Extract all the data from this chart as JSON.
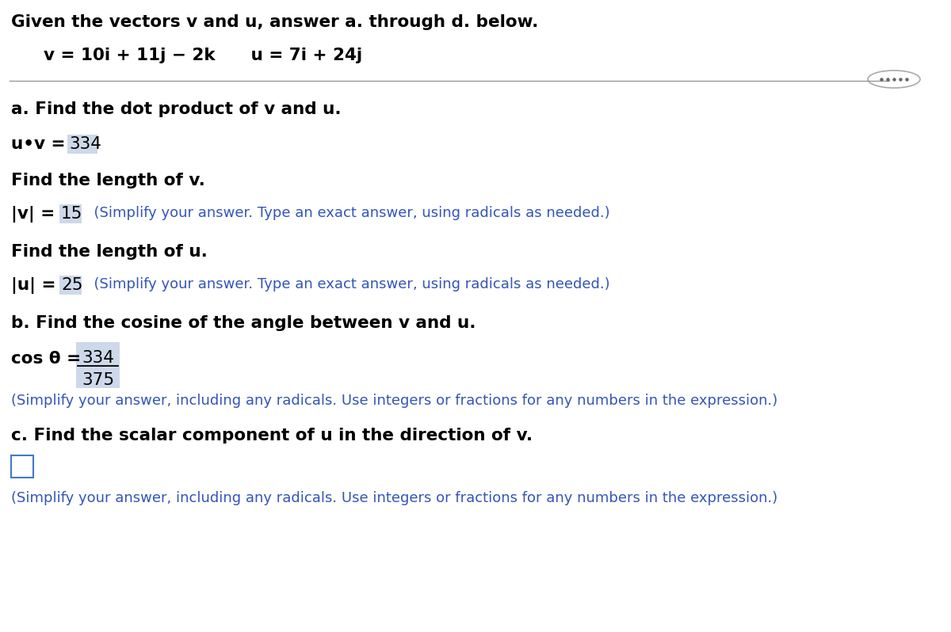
{
  "bg_color": "#ffffff",
  "text_color": "#000000",
  "blue_color": "#3355bb",
  "highlight_color": "#cdd8ea",
  "dot_product_value": "334",
  "length_v_value": "15",
  "length_u_value": "25",
  "cos_numerator": "334",
  "cos_denominator": "375",
  "length_note": "  (Simplify your answer. Type an exact answer, using radicals as needed.)",
  "cos_note": "(Simplify your answer, including any radicals. Use integers or fractions for any numbers in the expression.)",
  "scalar_note": "(Simplify your answer, including any radicals. Use integers or fractions for any numbers in the expression.)"
}
